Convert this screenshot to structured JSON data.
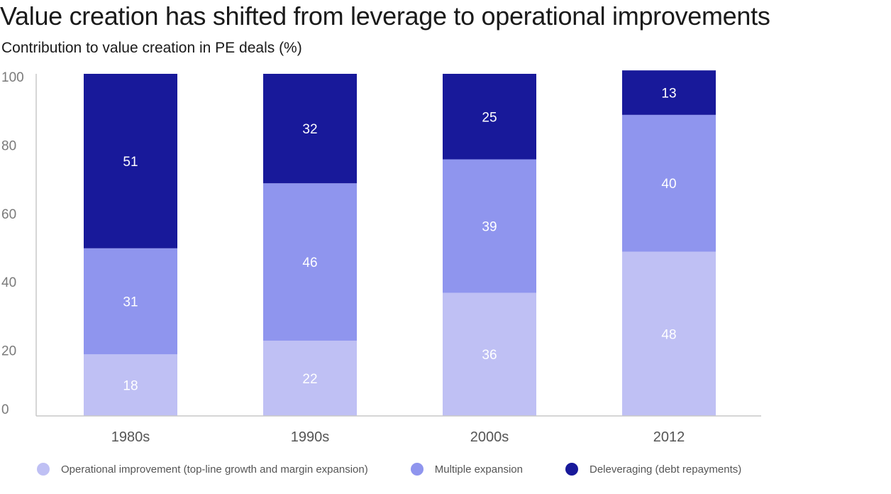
{
  "title": "Value creation has shifted from leverage to operational improvements",
  "subtitle": "Contribution to value creation in PE deals (%)",
  "chart_data": {
    "type": "bar",
    "stacked": true,
    "categories": [
      "1980s",
      "1990s",
      "2000s",
      "2012"
    ],
    "series": [
      {
        "name": "Operational improvement (top-line growth and margin expansion)",
        "values": [
          18,
          22,
          36,
          48
        ],
        "color": "#bfc0f4",
        "label_color": "#ffffff"
      },
      {
        "name": "Multiple expansion",
        "values": [
          31,
          46,
          39,
          40
        ],
        "color": "#8f95ee",
        "label_color": "#ffffff"
      },
      {
        "name": "Deleveraging (debt repayments)",
        "values": [
          51,
          32,
          25,
          13
        ],
        "color": "#18199a",
        "label_color": "#ffffff"
      }
    ],
    "y_ticks": [
      "0",
      "20",
      "40",
      "60",
      "80",
      "100"
    ],
    "ylim": [
      0,
      100
    ],
    "xlabel": "",
    "ylabel": "",
    "grid": false,
    "legend_position": "bottom",
    "axis_color": "#c8c8c8",
    "tick_label_color": "#7a7a7a",
    "category_label_color": "#555555"
  }
}
